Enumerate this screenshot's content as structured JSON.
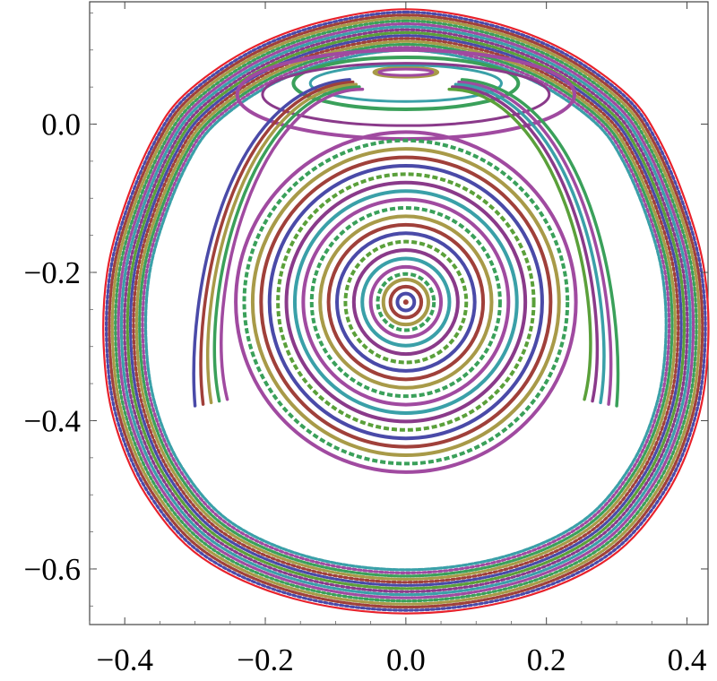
{
  "chart_data": {
    "type": "scatter",
    "title": "",
    "xlabel": "",
    "ylabel": "",
    "xlim": [
      -0.45,
      0.43
    ],
    "ylim": [
      -0.675,
      0.165
    ],
    "x_ticks": [
      {
        "value": -0.4,
        "label": "−0.4"
      },
      {
        "value": -0.2,
        "label": "−0.2"
      },
      {
        "value": 0.0,
        "label": "0.0"
      },
      {
        "value": 0.2,
        "label": "0.2"
      },
      {
        "value": 0.4,
        "label": "0.4"
      }
    ],
    "y_ticks": [
      {
        "value": 0.0,
        "label": "0.0"
      },
      {
        "value": -0.2,
        "label": "−0.2"
      },
      {
        "value": -0.4,
        "label": "−0.4"
      },
      {
        "value": -0.6,
        "label": "−0.6"
      }
    ],
    "grid": false,
    "legend": "none",
    "boundary": {
      "color": "#e8212b",
      "points": [
        [
          0.0,
          0.155
        ],
        [
          0.12,
          0.138
        ],
        [
          0.225,
          0.1
        ],
        [
          0.315,
          0.04
        ],
        [
          0.36,
          -0.02
        ],
        [
          0.4,
          -0.11
        ],
        [
          0.425,
          -0.2
        ],
        [
          0.43,
          -0.3
        ],
        [
          0.415,
          -0.4
        ],
        [
          0.37,
          -0.5
        ],
        [
          0.29,
          -0.585
        ],
        [
          0.16,
          -0.64
        ],
        [
          0.0,
          -0.66
        ],
        [
          -0.16,
          -0.64
        ],
        [
          -0.29,
          -0.585
        ],
        [
          -0.37,
          -0.5
        ],
        [
          -0.415,
          -0.4
        ],
        [
          -0.43,
          -0.3
        ],
        [
          -0.425,
          -0.2
        ],
        [
          -0.4,
          -0.11
        ],
        [
          -0.36,
          -0.02
        ],
        [
          -0.315,
          0.04
        ],
        [
          -0.225,
          0.1
        ],
        [
          -0.12,
          0.138
        ]
      ]
    },
    "center_fixed_point": [
      0.0,
      -0.24
    ],
    "palette": [
      "#4a4aa8",
      "#a0403a",
      "#a89a48",
      "#3aa05a",
      "#a04aa0",
      "#3aa0a8",
      "#8a3a8a",
      "#5aa03a"
    ],
    "central_island": {
      "center": [
        0.0,
        -0.24
      ],
      "radii": [
        0.012,
        0.022,
        0.032,
        0.04,
        0.05,
        0.062,
        0.074,
        0.086,
        0.098,
        0.11,
        0.122,
        0.134,
        0.146,
        0.158,
        0.17,
        0.182,
        0.194,
        0.206,
        0.218,
        0.23,
        0.242
      ]
    },
    "outer_bands": {
      "count": 14,
      "inner_scale": 0.86
    },
    "crescent_islands": [
      {
        "center": [
          0.0,
          0.07
        ],
        "half_width": 0.045,
        "half_height": 0.006
      },
      {
        "center": [
          0.0,
          0.055
        ],
        "half_width": 0.16,
        "half_height": 0.035
      },
      {
        "center": [
          0.0,
          0.04
        ],
        "half_width": 0.24,
        "half_height": 0.06
      }
    ],
    "lobe_islands": [
      {
        "side": "left",
        "apex": [
          -0.08,
          0.06
        ],
        "tail": [
          -0.3,
          -0.38
        ]
      },
      {
        "side": "right",
        "apex": [
          0.08,
          0.06
        ],
        "tail": [
          0.3,
          -0.38
        ]
      }
    ]
  }
}
